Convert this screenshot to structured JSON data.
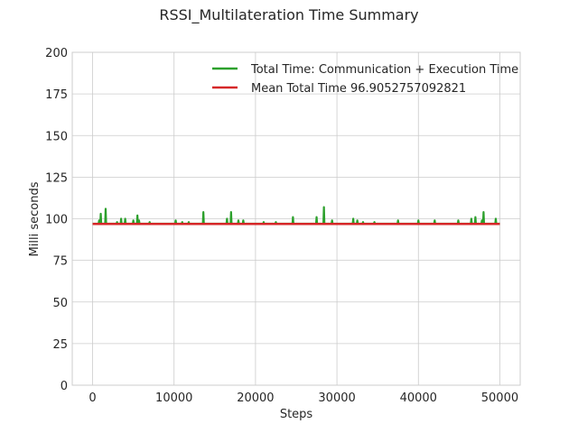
{
  "chart_data": {
    "type": "line",
    "title": "RSSI_Multilateration Time Summary",
    "xlabel": "Steps",
    "ylabel": "Milli seconds",
    "xlim": [
      -2500,
      52500
    ],
    "ylim": [
      0,
      200
    ],
    "xticks": [
      0,
      10000,
      20000,
      30000,
      40000,
      50000
    ],
    "yticks": [
      0,
      25,
      50,
      75,
      100,
      125,
      150,
      175,
      200
    ],
    "grid": true,
    "legend_position": "top-right",
    "series": [
      {
        "name": "Total Time: Communication + Execution Time",
        "color": "#2ca02c",
        "baseline": 97.0,
        "x_range": [
          0,
          50000
        ],
        "spikes": [
          [
            800,
            99
          ],
          [
            1000,
            103
          ],
          [
            1600,
            106
          ],
          [
            3000,
            98
          ],
          [
            3500,
            100
          ],
          [
            4000,
            100
          ],
          [
            5000,
            99
          ],
          [
            5500,
            102
          ],
          [
            5700,
            99
          ],
          [
            7000,
            98
          ],
          [
            10200,
            99
          ],
          [
            11000,
            98
          ],
          [
            11800,
            98
          ],
          [
            13600,
            104
          ],
          [
            16500,
            100
          ],
          [
            17000,
            104
          ],
          [
            17900,
            99
          ],
          [
            18500,
            99
          ],
          [
            21000,
            98
          ],
          [
            22500,
            98
          ],
          [
            24600,
            101
          ],
          [
            27500,
            101
          ],
          [
            28400,
            107
          ],
          [
            29400,
            99
          ],
          [
            32000,
            100
          ],
          [
            32500,
            99
          ],
          [
            33200,
            98
          ],
          [
            34600,
            98
          ],
          [
            37500,
            99
          ],
          [
            40000,
            99
          ],
          [
            42000,
            99
          ],
          [
            44900,
            99
          ],
          [
            46500,
            100
          ],
          [
            47000,
            101
          ],
          [
            47800,
            99
          ],
          [
            48000,
            104
          ],
          [
            49500,
            100
          ]
        ]
      },
      {
        "name": "Mean Total Time 96.9052757092821",
        "color": "#d62728",
        "value": 96.9052757092821,
        "x_range": [
          0,
          50000
        ]
      }
    ]
  }
}
